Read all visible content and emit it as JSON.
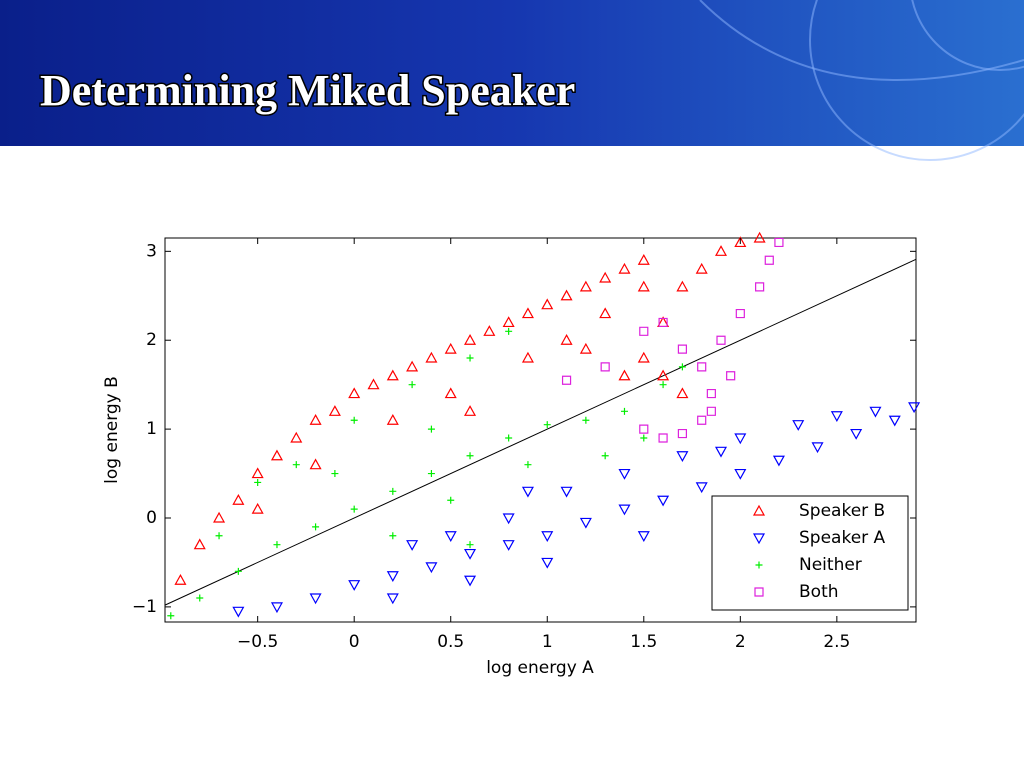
{
  "slide_title": "Determining Miked Speaker",
  "chart_data": {
    "type": "scatter",
    "x_label": "log energy A",
    "y_label": "log energy B",
    "xlim": [
      -0.98,
      2.91
    ],
    "ylim": [
      -1.17,
      3.15
    ],
    "xticks": [
      {
        "value": -0.5,
        "label": "−0.5"
      },
      0,
      0.5,
      1,
      1.5,
      2,
      2.5
    ],
    "yticks": [
      {
        "value": -1,
        "label": "−1"
      },
      0,
      1,
      2,
      3
    ],
    "diagonal": true,
    "legend": "lower right",
    "series": [
      {
        "name": "Speaker B",
        "color": "#ff0000",
        "marker": "triangle-up",
        "x": [
          -0.9,
          -0.8,
          -0.7,
          -0.6,
          -0.5,
          -0.4,
          -0.3,
          -0.2,
          -0.1,
          0,
          0.1,
          0.2,
          0.3,
          0.4,
          0.5,
          0.6,
          0.7,
          0.8,
          0.9,
          1.0,
          1.1,
          1.2,
          1.3,
          1.4,
          1.5,
          1.5,
          1.3,
          1.1,
          0.9,
          0.5,
          0.2,
          -0.2,
          -0.5,
          0.6,
          1.7,
          1.8,
          1.9,
          2.0,
          2.1,
          1.6,
          1.5,
          1.6,
          1.7,
          1.4,
          1.2
        ],
        "y": [
          -0.7,
          -0.3,
          0.0,
          0.2,
          0.5,
          0.7,
          0.9,
          1.1,
          1.2,
          1.4,
          1.5,
          1.6,
          1.7,
          1.8,
          1.9,
          2.0,
          2.1,
          2.2,
          2.3,
          2.4,
          2.5,
          2.6,
          2.7,
          2.8,
          2.9,
          2.6,
          2.3,
          2.0,
          1.8,
          1.4,
          1.1,
          0.6,
          0.1,
          1.2,
          2.6,
          2.8,
          3.0,
          3.1,
          3.15,
          2.2,
          1.8,
          1.6,
          1.4,
          1.6,
          1.9
        ]
      },
      {
        "name": "Speaker A",
        "color": "#0000ff",
        "marker": "triangle-down",
        "x": [
          -0.6,
          -0.4,
          -0.2,
          0,
          0.2,
          0.4,
          0.6,
          0.8,
          1.0,
          1.2,
          1.4,
          1.6,
          1.8,
          2.0,
          2.2,
          2.4,
          2.6,
          2.8,
          2.9,
          0.5,
          0.8,
          1.1,
          1.4,
          1.7,
          2.0,
          2.3,
          2.5,
          0.2,
          0.6,
          1.0,
          1.5,
          0.9,
          0.3,
          1.9,
          2.7
        ],
        "y": [
          -1.05,
          -1.0,
          -0.9,
          -0.75,
          -0.65,
          -0.55,
          -0.4,
          -0.3,
          -0.2,
          -0.05,
          0.1,
          0.2,
          0.35,
          0.5,
          0.65,
          0.8,
          0.95,
          1.1,
          1.25,
          -0.2,
          0.0,
          0.3,
          0.5,
          0.7,
          0.9,
          1.05,
          1.15,
          -0.9,
          -0.7,
          -0.5,
          -0.2,
          0.3,
          -0.3,
          0.75,
          1.2
        ]
      },
      {
        "name": "Neither",
        "color": "#00ee00",
        "marker": "plus",
        "x": [
          -0.95,
          -0.8,
          -0.6,
          -0.4,
          -0.2,
          0,
          0.2,
          0.4,
          0.6,
          0.8,
          1.0,
          1.2,
          1.4,
          1.6,
          1.7,
          -0.5,
          -0.3,
          0,
          0.3,
          0.6,
          0.8,
          -0.7,
          0.5,
          0.2,
          0.6,
          0.9,
          1.3,
          1.5,
          0.4,
          -0.1
        ],
        "y": [
          -1.1,
          -0.9,
          -0.6,
          -0.3,
          -0.1,
          0.1,
          0.3,
          0.5,
          0.7,
          0.9,
          1.05,
          1.1,
          1.2,
          1.5,
          1.7,
          0.4,
          0.6,
          1.1,
          1.5,
          1.8,
          2.1,
          -0.2,
          0.2,
          -0.2,
          -0.3,
          0.6,
          0.7,
          0.9,
          1.0,
          0.5
        ]
      },
      {
        "name": "Both",
        "color": "#dd22dd",
        "marker": "square",
        "x": [
          1.1,
          1.3,
          1.5,
          1.6,
          1.7,
          1.8,
          1.85,
          1.8,
          1.7,
          1.6,
          1.5,
          1.9,
          2.0,
          2.1,
          2.15,
          2.2,
          1.95,
          1.85
        ],
        "y": [
          1.55,
          1.7,
          2.1,
          2.2,
          1.9,
          1.7,
          1.4,
          1.1,
          0.95,
          0.9,
          1.0,
          2.0,
          2.3,
          2.6,
          2.9,
          3.1,
          1.6,
          1.2
        ]
      }
    ]
  }
}
